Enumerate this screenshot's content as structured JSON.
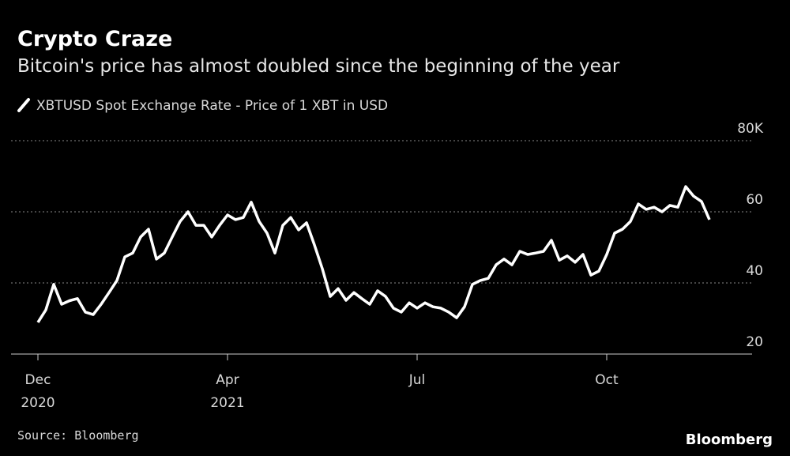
{
  "chart_data": {
    "type": "line",
    "title": "Crypto Craze",
    "subtitle": "Bitcoin's price has almost doubled since the beginning of the year",
    "series": [
      {
        "name": "XBTUSD Spot Exchange Rate - Price of 1 XBT in USD",
        "color": "#ffffff",
        "values": [
          28.9,
          32.4,
          39.6,
          34,
          35,
          35.6,
          31.8,
          31.1,
          34,
          37.3,
          40.7,
          47.3,
          48.4,
          52.9,
          55.1,
          46.7,
          48.4,
          52.9,
          57.3,
          60,
          56.2,
          56.2,
          52.9,
          56.2,
          59.1,
          57.8,
          58.4,
          62.7,
          57.3,
          54,
          48.4,
          56.2,
          58.4,
          54.9,
          56.9,
          50.7,
          44,
          36.2,
          38.4,
          35.1,
          37.3,
          35.6,
          34,
          37.8,
          36.2,
          32.9,
          31.8,
          34.4,
          32.9,
          34.4,
          33.3,
          32.9,
          31.8,
          30.2,
          33.3,
          39.6,
          40.7,
          41.3,
          45.1,
          46.7,
          45.1,
          48.9,
          48,
          48.4,
          48.9,
          52,
          46.4,
          47.6,
          45.8,
          48,
          42.2,
          43.3,
          48,
          54,
          55.1,
          57.3,
          62.2,
          60.7,
          61.3,
          60,
          61.8,
          61.3,
          67.1,
          64.4,
          62.9,
          57.8
        ]
      }
    ],
    "xlim": [
      0,
      90
    ],
    "xticks": [
      {
        "value": 0,
        "label": [
          "Dec",
          "2020"
        ]
      },
      {
        "value": 24,
        "label": [
          "Apr",
          "2021"
        ]
      },
      {
        "value": 48,
        "label": [
          "Jul"
        ]
      },
      {
        "value": 72,
        "label": [
          "Oct"
        ]
      }
    ],
    "ylim": [
      20,
      80
    ],
    "yticks": [
      {
        "value": 20,
        "label": "20"
      },
      {
        "value": 40,
        "label": "40"
      },
      {
        "value": 60,
        "label": "60"
      },
      {
        "value": 80,
        "label": "80K"
      }
    ],
    "grid": true,
    "source": "Source: Bloomberg",
    "brand": "Bloomberg"
  }
}
